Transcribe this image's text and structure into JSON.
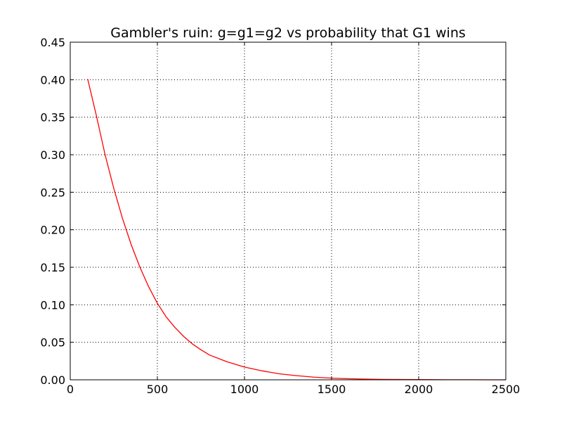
{
  "chart_data": {
    "type": "line",
    "title": "Gambler's ruin: g=g1=g2 vs probability that G1 wins",
    "xlabel": "",
    "ylabel": "",
    "xlim": [
      0,
      2500
    ],
    "ylim": [
      0,
      0.45
    ],
    "x_ticks": [
      0,
      500,
      1000,
      1500,
      2000,
      2500
    ],
    "x_tick_labels": [
      "0",
      "500",
      "1000",
      "1500",
      "2000",
      "2500"
    ],
    "y_ticks": [
      0,
      0.05,
      0.1,
      0.15,
      0.2,
      0.25,
      0.3,
      0.35,
      0.4,
      0.45
    ],
    "y_tick_labels": [
      "0.00",
      "0.05",
      "0.10",
      "0.15",
      "0.20",
      "0.25",
      "0.30",
      "0.35",
      "0.40",
      "0.45"
    ],
    "grid": true,
    "legend": "none",
    "series": [
      {
        "color": "#ff0000",
        "x": [
          100,
          150,
          200,
          250,
          300,
          350,
          400,
          450,
          500,
          550,
          600,
          650,
          700,
          750,
          800,
          900,
          1000,
          1100,
          1200,
          1300,
          1400,
          1500,
          1600,
          1700,
          1800,
          1900,
          2000,
          2100,
          2200,
          2300,
          2400,
          2500
        ],
        "y": [
          0.401,
          0.352,
          0.3,
          0.255,
          0.215,
          0.18,
          0.15,
          0.124,
          0.102,
          0.084,
          0.07,
          0.058,
          0.048,
          0.04,
          0.033,
          0.024,
          0.017,
          0.012,
          0.008,
          0.0055,
          0.0035,
          0.0022,
          0.0014,
          0.0009,
          0.0006,
          0.0004,
          0.0003,
          0.0002,
          0.0001,
          0.0001,
          0.0,
          0.0
        ]
      }
    ]
  }
}
